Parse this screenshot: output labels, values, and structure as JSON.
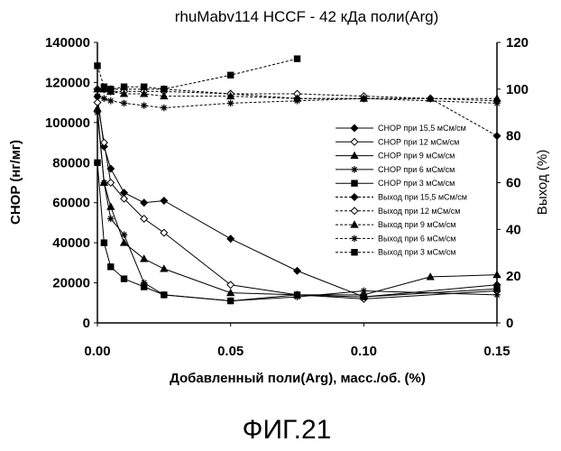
{
  "chart_data": {
    "type": "line",
    "title": "rhuMabv114 HCCF - 42 кДа поли(Arg)",
    "xlabel": "Добавленный поли(Arg), масс./об. (%)",
    "ylabel_left": "CHOP (нг/мг)",
    "ylabel_right": "Выход (%)",
    "xlim": [
      0,
      0.15
    ],
    "ylim_left": [
      0,
      140000
    ],
    "ylim_right": [
      0,
      120
    ],
    "xticks": [
      "0.00",
      "0.05",
      "0.10",
      "0.15"
    ],
    "yticks_left": [
      "0",
      "20000",
      "40000",
      "60000",
      "80000",
      "100000",
      "120000",
      "140000"
    ],
    "yticks_right": [
      "0",
      "20",
      "40",
      "60",
      "80",
      "100",
      "120"
    ],
    "grid": false,
    "legend_position": "right",
    "series": [
      {
        "name": "CHOP при 15,5 мСм/см",
        "axis": "left",
        "marker": "diamond",
        "dash": false,
        "fill": true,
        "x": [
          0,
          0.0025,
          0.005,
          0.01,
          0.0175,
          0.025,
          0.05,
          0.075,
          0.1,
          0.15
        ],
        "y": [
          113000,
          88000,
          77000,
          65000,
          60000,
          61000,
          42000,
          26000,
          13000,
          19000
        ]
      },
      {
        "name": "CHOP при 12 мСм/см",
        "axis": "left",
        "marker": "diamond",
        "dash": false,
        "fill": false,
        "x": [
          0,
          0.0025,
          0.005,
          0.01,
          0.0175,
          0.025,
          0.05,
          0.075,
          0.1,
          0.15
        ],
        "y": [
          110000,
          90000,
          70000,
          62000,
          52000,
          45000,
          19000,
          14000,
          12000,
          16000
        ]
      },
      {
        "name": "CHOP при 9 мСм/см",
        "axis": "left",
        "marker": "triangle",
        "dash": false,
        "fill": true,
        "x": [
          0,
          0.0025,
          0.005,
          0.01,
          0.0175,
          0.025,
          0.05,
          0.075,
          0.1,
          0.125,
          0.15
        ],
        "y": [
          107000,
          70000,
          58000,
          40000,
          32000,
          27000,
          15000,
          14000,
          14000,
          23000,
          24000
        ]
      },
      {
        "name": "CHOP при 6 мСм/см",
        "axis": "left",
        "marker": "star",
        "dash": false,
        "fill": false,
        "x": [
          0,
          0.0025,
          0.005,
          0.01,
          0.0175,
          0.025,
          0.05,
          0.075,
          0.1,
          0.15
        ],
        "y": [
          105000,
          70000,
          52000,
          44000,
          20000,
          14000,
          11000,
          13000,
          16000,
          14000
        ]
      },
      {
        "name": "CHOP при 3 мСм/см",
        "axis": "left",
        "marker": "square",
        "dash": false,
        "fill": true,
        "x": [
          0,
          0.0025,
          0.005,
          0.01,
          0.0175,
          0.025,
          0.05,
          0.075,
          0.1,
          0.15
        ],
        "y": [
          80000,
          40000,
          28000,
          22000,
          18000,
          14000,
          11000,
          14000,
          13000,
          17000
        ]
      },
      {
        "name": "Выход при 15,5 мСм/см",
        "axis": "right",
        "marker": "diamond",
        "dash": true,
        "fill": true,
        "x": [
          0,
          0.0025,
          0.005,
          0.01,
          0.0175,
          0.025,
          0.05,
          0.075,
          0.1,
          0.125,
          0.15
        ],
        "y": [
          100,
          100,
          100,
          100,
          100,
          100,
          98,
          96,
          96,
          96,
          80
        ]
      },
      {
        "name": "Выход при 12 мСм/см",
        "axis": "right",
        "marker": "diamond",
        "dash": true,
        "fill": false,
        "x": [
          0,
          0.0025,
          0.005,
          0.01,
          0.0175,
          0.025,
          0.05,
          0.075,
          0.1,
          0.125,
          0.15
        ],
        "y": [
          100,
          100,
          99,
          99,
          99,
          99,
          98,
          98,
          97,
          96,
          95
        ]
      },
      {
        "name": "Выход при 9 мСм/см",
        "axis": "right",
        "marker": "triangle",
        "dash": true,
        "fill": true,
        "x": [
          0,
          0.0025,
          0.005,
          0.01,
          0.0175,
          0.025,
          0.05,
          0.075,
          0.1,
          0.125,
          0.15
        ],
        "y": [
          100,
          100,
          99,
          98,
          98,
          97,
          97,
          96,
          96,
          96,
          96
        ]
      },
      {
        "name": "Выход при 6 мСм/см",
        "axis": "right",
        "marker": "star",
        "dash": true,
        "fill": false,
        "x": [
          0,
          0.0025,
          0.005,
          0.01,
          0.0175,
          0.025,
          0.05,
          0.075,
          0.1,
          0.15
        ],
        "y": [
          97,
          96,
          95,
          94,
          93,
          92,
          94,
          95,
          96,
          94
        ]
      },
      {
        "name": "Выход при 3 мСм/см",
        "axis": "right",
        "marker": "square",
        "dash": true,
        "fill": true,
        "x": [
          0,
          0.0025,
          0.005,
          0.01,
          0.0175,
          0.025,
          0.05,
          0.075
        ],
        "y": [
          110,
          101,
          100,
          101,
          101,
          100,
          106,
          113
        ]
      }
    ]
  },
  "caption": "ФИГ.21"
}
